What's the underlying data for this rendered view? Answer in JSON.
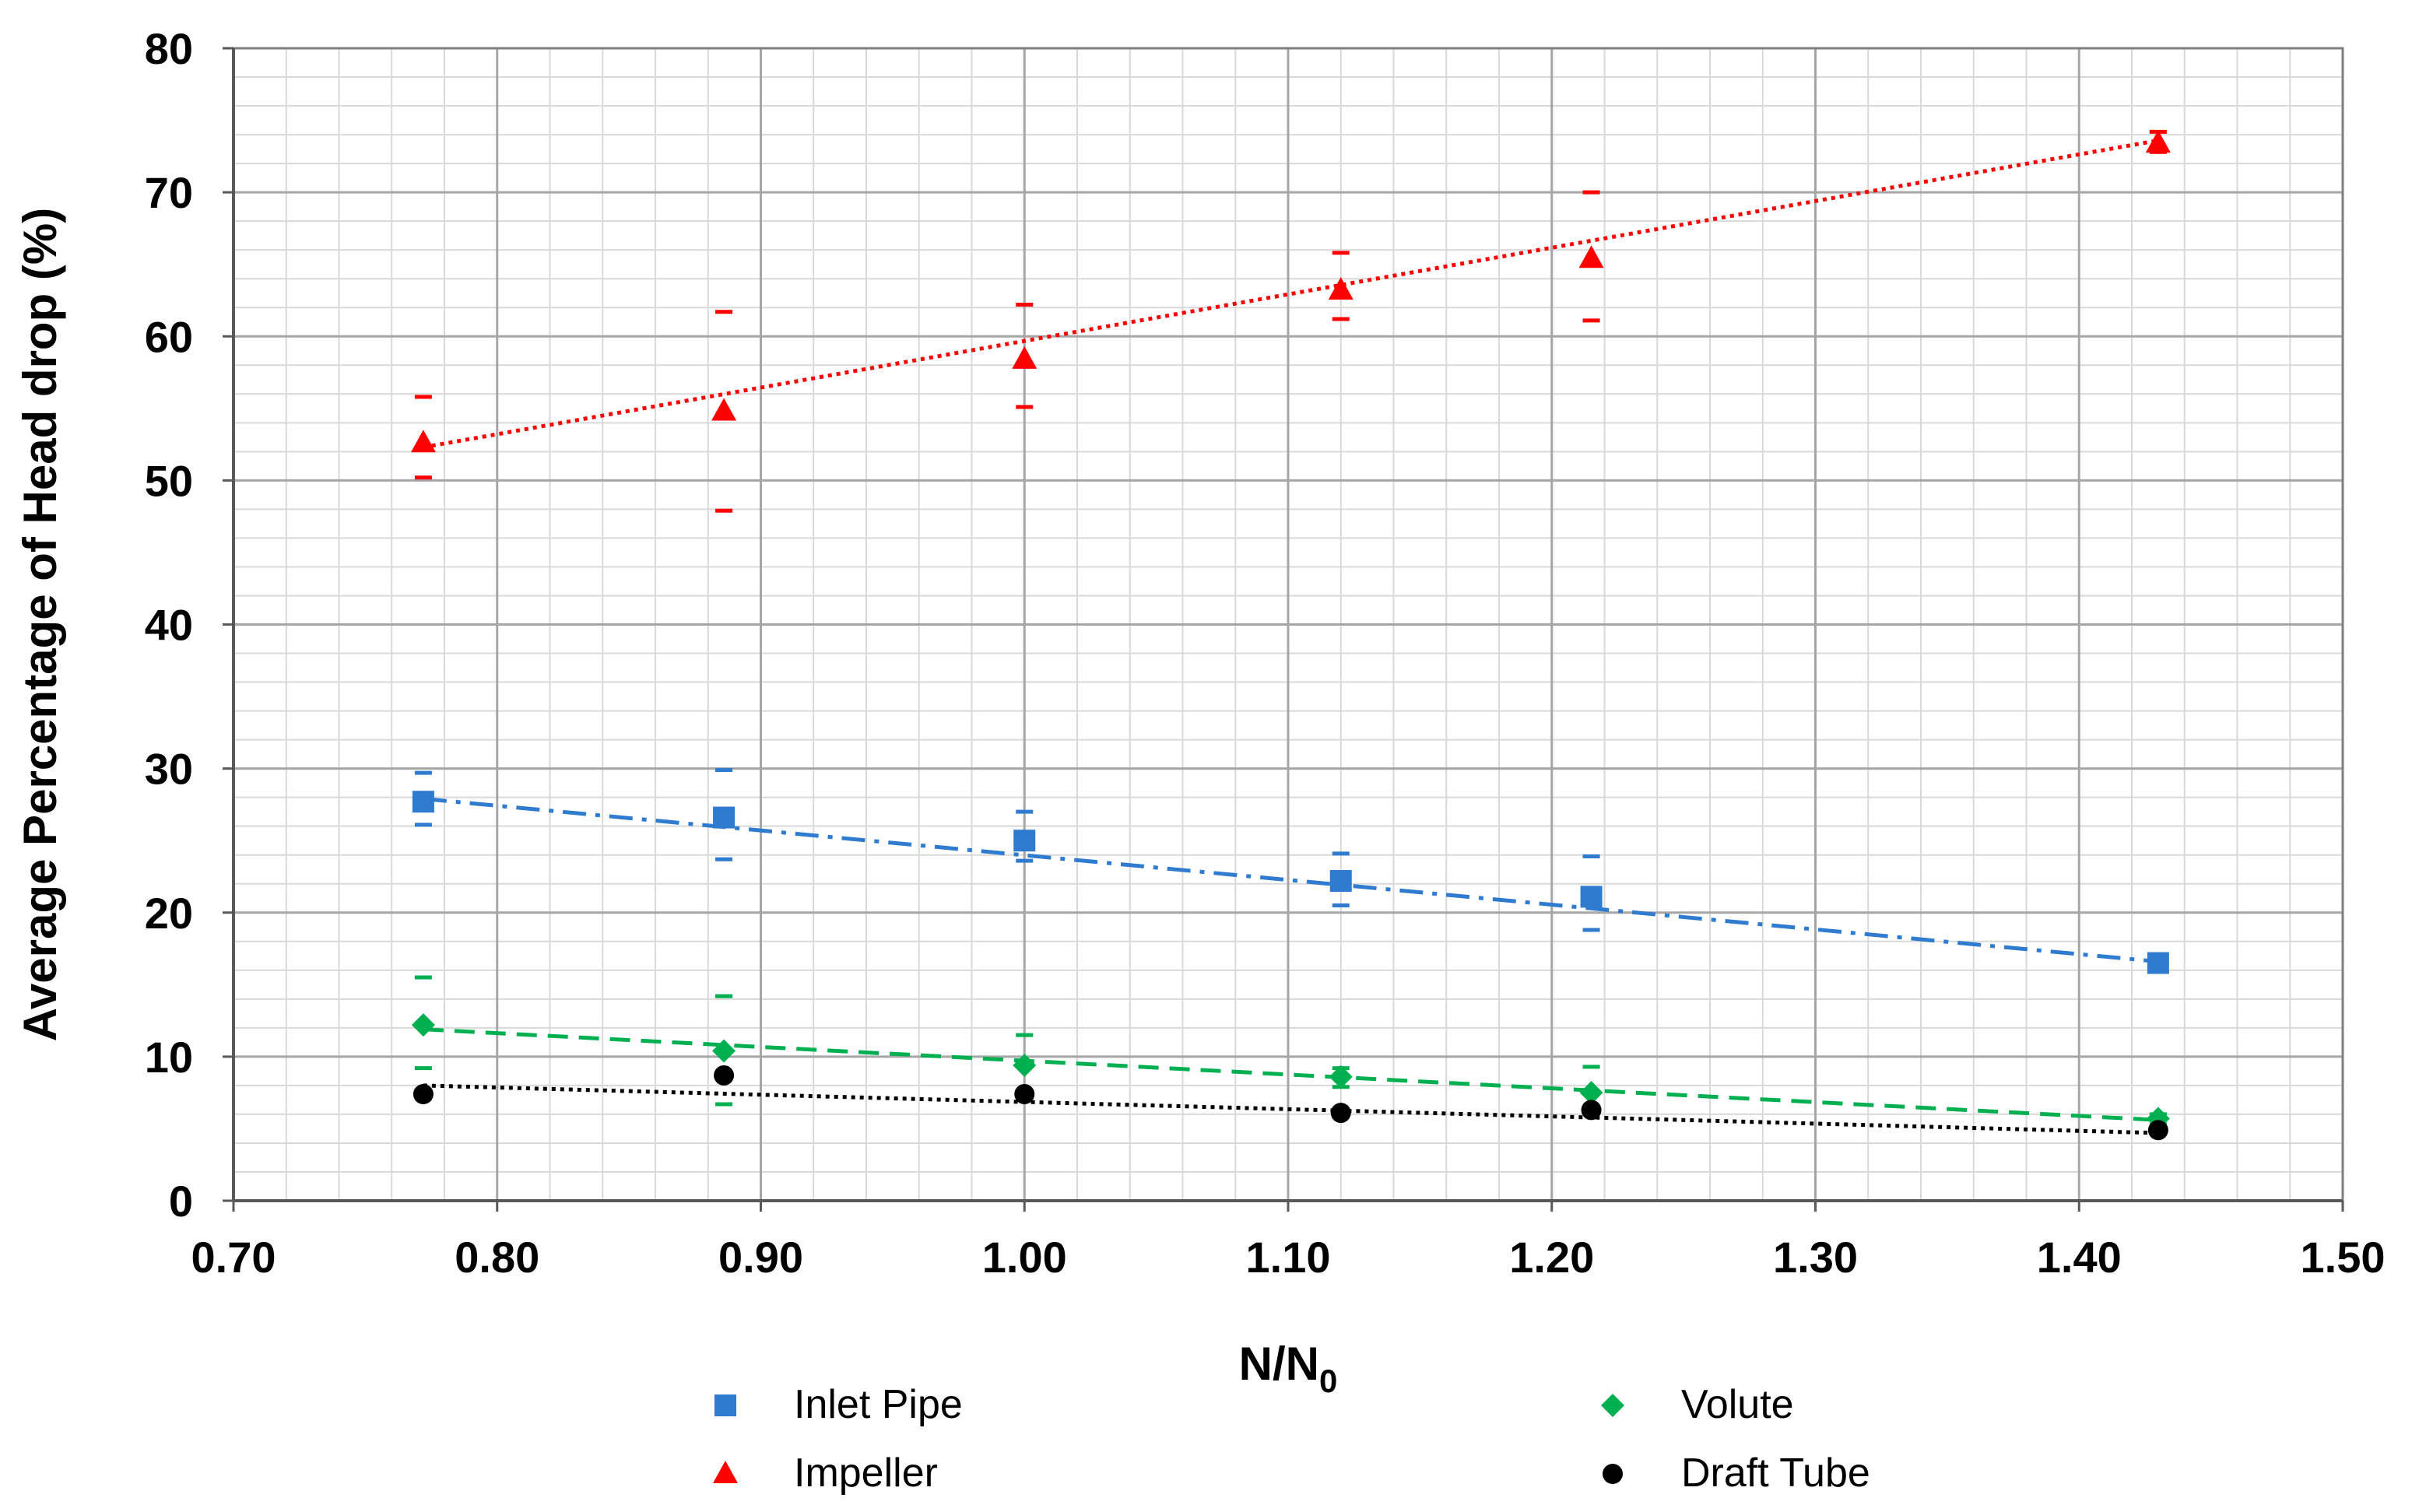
{
  "chart_data": {
    "type": "scatter",
    "title": "",
    "xlabel": "N/N",
    "xlabel_subscript": "0",
    "ylabel": "Average Percentage of Head drop (%)",
    "xlim": [
      0.7,
      1.5
    ],
    "ylim": [
      0,
      80
    ],
    "x_major_ticks": [
      "0.70",
      "0.80",
      "0.90",
      "1.00",
      "1.10",
      "1.20",
      "1.30",
      "1.40",
      "1.50"
    ],
    "y_major_ticks": [
      "0",
      "10",
      "20",
      "30",
      "40",
      "50",
      "60",
      "70",
      "80"
    ],
    "x_major_step": 0.1,
    "x_minor_step": 0.02,
    "y_major_step": 10,
    "y_minor_step": 2,
    "grid": true,
    "legend_position": "bottom",
    "series": [
      {
        "name": "Inlet Pipe",
        "marker": "square",
        "color": "#2E7BCF",
        "trendline": "dash-dot",
        "x": [
          0.772,
          0.886,
          1.0,
          1.12,
          1.215,
          1.43
        ],
        "y": [
          27.7,
          26.6,
          25.0,
          22.2,
          21.1,
          16.5
        ],
        "err_high": [
          29.7,
          29.9,
          27.0,
          24.1,
          23.9,
          17.0
        ],
        "err_low": [
          26.1,
          23.7,
          23.6,
          20.5,
          18.8,
          15.9
        ],
        "trend_y": [
          27.9,
          16.6
        ]
      },
      {
        "name": "Impeller",
        "marker": "triangle",
        "color": "#FF0000",
        "trendline": "dotted",
        "x": [
          0.772,
          0.886,
          1.0,
          1.12,
          1.215,
          1.43
        ],
        "y": [
          52.6,
          54.8,
          58.4,
          63.2,
          65.4,
          73.4
        ],
        "err_high": [
          55.8,
          61.7,
          62.2,
          65.8,
          70.0,
          74.2
        ],
        "err_low": [
          50.2,
          47.9,
          55.1,
          61.2,
          61.1,
          72.8
        ],
        "trend_y": [
          52.3,
          73.6
        ]
      },
      {
        "name": "Volute",
        "marker": "diamond",
        "color": "#00B050",
        "trendline": "dashed",
        "x": [
          0.772,
          0.886,
          1.0,
          1.12,
          1.215,
          1.43
        ],
        "y": [
          12.2,
          10.4,
          9.4,
          8.6,
          7.5,
          5.7
        ],
        "err_high": [
          15.5,
          14.2,
          11.5,
          9.2,
          9.3,
          6.0
        ],
        "err_low": [
          9.2,
          6.7,
          7.5,
          7.9,
          6.4,
          5.3
        ],
        "trend_y": [
          11.9,
          5.6
        ]
      },
      {
        "name": "Draft Tube",
        "marker": "circle",
        "color": "#000000",
        "trendline": "dotted",
        "x": [
          0.772,
          0.886,
          1.0,
          1.12,
          1.215,
          1.43
        ],
        "y": [
          7.4,
          8.7,
          7.4,
          6.1,
          6.3,
          4.9
        ],
        "err_high": [],
        "err_low": [],
        "trend_y": [
          8.0,
          4.7
        ]
      }
    ]
  }
}
